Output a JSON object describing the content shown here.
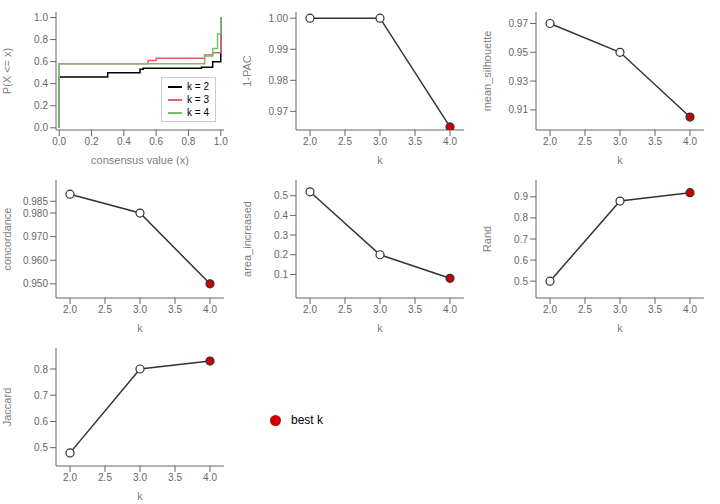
{
  "chart_data": [
    {
      "type": "step",
      "xlabel": "consensus value (x)",
      "ylabel": "P(X <= x)",
      "xlim": [
        -0.02,
        1.02
      ],
      "ylim": [
        -0.02,
        1.05
      ],
      "xticks": [
        {
          "value": 0.0,
          "label": "0.0"
        },
        0.2,
        0.4,
        0.6,
        0.8,
        {
          "value": 1.0,
          "label": "1.0"
        }
      ],
      "yticks": [
        {
          "value": 0.0,
          "label": "0.0"
        },
        0.2,
        0.4,
        0.6,
        0.8,
        {
          "value": 1.0,
          "label": "1.0"
        }
      ],
      "legend": "lower right",
      "grid": false,
      "series": [
        {
          "name": "k = 2",
          "color": "#000000",
          "x": [
            0.0,
            0.0,
            0.3,
            0.3,
            0.5,
            0.5,
            0.52,
            0.52,
            0.88,
            0.88,
            0.95,
            0.95,
            1.0,
            1.0
          ],
          "values": [
            0.0,
            0.46,
            0.46,
            0.5,
            0.5,
            0.53,
            0.53,
            0.54,
            0.54,
            0.55,
            0.55,
            0.6,
            0.6,
            1.0
          ]
        },
        {
          "name": "k = 3",
          "color": "#e06070",
          "x": [
            0.0,
            0.0,
            0.55,
            0.55,
            0.6,
            0.6,
            0.9,
            0.9,
            0.95,
            0.95,
            1.0,
            1.0
          ],
          "values": [
            0.0,
            0.58,
            0.58,
            0.61,
            0.61,
            0.63,
            0.63,
            0.66,
            0.66,
            0.68,
            0.68,
            1.0
          ]
        },
        {
          "name": "k = 4",
          "color": "#70c070",
          "x": [
            0.0,
            0.0,
            0.9,
            0.9,
            0.95,
            0.95,
            0.98,
            0.98,
            1.0,
            1.0
          ],
          "values": [
            0.0,
            0.58,
            0.58,
            0.65,
            0.65,
            0.72,
            0.72,
            0.85,
            0.85,
            1.0
          ]
        }
      ]
    },
    {
      "type": "line",
      "xlabel": "k",
      "ylabel": "1-PAC",
      "x": [
        2,
        3,
        4
      ],
      "values": [
        1.0,
        1.0,
        0.965
      ],
      "color": "#333333",
      "colors": [
        "#ffffff",
        "#ffffff",
        "#cc0000"
      ],
      "marker": "o",
      "grid": false,
      "xlim": [
        1.8,
        4.2
      ],
      "xticks": [
        {
          "value": 2.0,
          "label": "2.0"
        },
        2.5,
        {
          "value": 3.0,
          "label": "3.0"
        },
        3.5,
        {
          "value": 4.0,
          "label": "4.0"
        }
      ],
      "ylim": [
        0.964,
        1.002
      ],
      "yticks": [
        0.97,
        0.98,
        0.99,
        {
          "value": 1.0,
          "label": "1.00"
        }
      ]
    },
    {
      "type": "line",
      "xlabel": "k",
      "ylabel": "mean_silhouette",
      "x": [
        2,
        3,
        4
      ],
      "values": [
        0.97,
        0.95,
        0.905
      ],
      "color": "#333333",
      "colors": [
        "#ffffff",
        "#ffffff",
        "#cc0000"
      ],
      "marker": "o",
      "grid": false,
      "xlim": [
        1.8,
        4.2
      ],
      "xticks": [
        {
          "value": 2.0,
          "label": "2.0"
        },
        2.5,
        {
          "value": 3.0,
          "label": "3.0"
        },
        3.5,
        {
          "value": 4.0,
          "label": "4.0"
        }
      ],
      "ylim": [
        0.896,
        0.978
      ],
      "yticks": [
        0.91,
        0.93,
        0.95,
        0.97
      ]
    },
    {
      "type": "line",
      "xlabel": "k",
      "ylabel": "concordance",
      "x": [
        2,
        3,
        4
      ],
      "values": [
        0.988,
        0.98,
        0.95
      ],
      "color": "#333333",
      "colors": [
        "#ffffff",
        "#ffffff",
        "#cc0000"
      ],
      "marker": "o",
      "grid": false,
      "xlim": [
        1.8,
        4.2
      ],
      "xticks": [
        {
          "value": 2.0,
          "label": "2.0"
        },
        2.5,
        {
          "value": 3.0,
          "label": "3.0"
        },
        3.5,
        {
          "value": 4.0,
          "label": "4.0"
        }
      ],
      "ylim": [
        0.944,
        0.994
      ],
      "yticks": [
        {
          "value": 0.95,
          "label": "0.950"
        },
        {
          "value": 0.96,
          "label": "0.960"
        },
        {
          "value": 0.97,
          "label": "0.970"
        },
        {
          "value": 0.98,
          "label": "0.980"
        },
        0.985
      ]
    },
    {
      "type": "line",
      "xlabel": "k",
      "ylabel": "area_increased",
      "x": [
        2,
        3,
        4
      ],
      "values": [
        0.52,
        0.2,
        0.08
      ],
      "color": "#333333",
      "colors": [
        "#ffffff",
        "#ffffff",
        "#cc0000"
      ],
      "marker": "o",
      "grid": false,
      "xlim": [
        1.8,
        4.2
      ],
      "xticks": [
        {
          "value": 2.0,
          "label": "2.0"
        },
        2.5,
        {
          "value": 3.0,
          "label": "3.0"
        },
        3.5,
        {
          "value": 4.0,
          "label": "4.0"
        }
      ],
      "ylim": [
        -0.02,
        0.58
      ],
      "yticks": [
        0.1,
        0.2,
        0.3,
        0.4,
        0.5
      ]
    },
    {
      "type": "line",
      "xlabel": "k",
      "ylabel": "Rand",
      "x": [
        2,
        3,
        4
      ],
      "values": [
        0.5,
        0.88,
        0.92
      ],
      "color": "#333333",
      "colors": [
        "#ffffff",
        "#ffffff",
        "#cc0000"
      ],
      "marker": "o",
      "grid": false,
      "xlim": [
        1.8,
        4.2
      ],
      "xticks": [
        {
          "value": 2.0,
          "label": "2.0"
        },
        2.5,
        {
          "value": 3.0,
          "label": "3.0"
        },
        3.5,
        {
          "value": 4.0,
          "label": "4.0"
        }
      ],
      "ylim": [
        0.42,
        0.98
      ],
      "yticks": [
        0.5,
        0.6,
        0.7,
        0.8,
        0.9
      ]
    },
    {
      "type": "line",
      "xlabel": "k",
      "ylabel": "Jaccard",
      "x": [
        2,
        3,
        4
      ],
      "values": [
        0.48,
        0.8,
        0.83
      ],
      "color": "#333333",
      "colors": [
        "#ffffff",
        "#ffffff",
        "#cc0000"
      ],
      "marker": "o",
      "grid": false,
      "xlim": [
        1.8,
        4.2
      ],
      "xticks": [
        {
          "value": 2.0,
          "label": "2.0"
        },
        2.5,
        {
          "value": 3.0,
          "label": "3.0"
        },
        3.5,
        {
          "value": 4.0,
          "label": "4.0"
        }
      ],
      "ylim": [
        0.43,
        0.88
      ],
      "yticks": [
        0.5,
        0.6,
        0.7,
        0.8
      ]
    },
    {
      "type": "legend",
      "series": [
        {
          "name": "best k",
          "color": "#cc0000",
          "marker": "o"
        }
      ]
    }
  ]
}
